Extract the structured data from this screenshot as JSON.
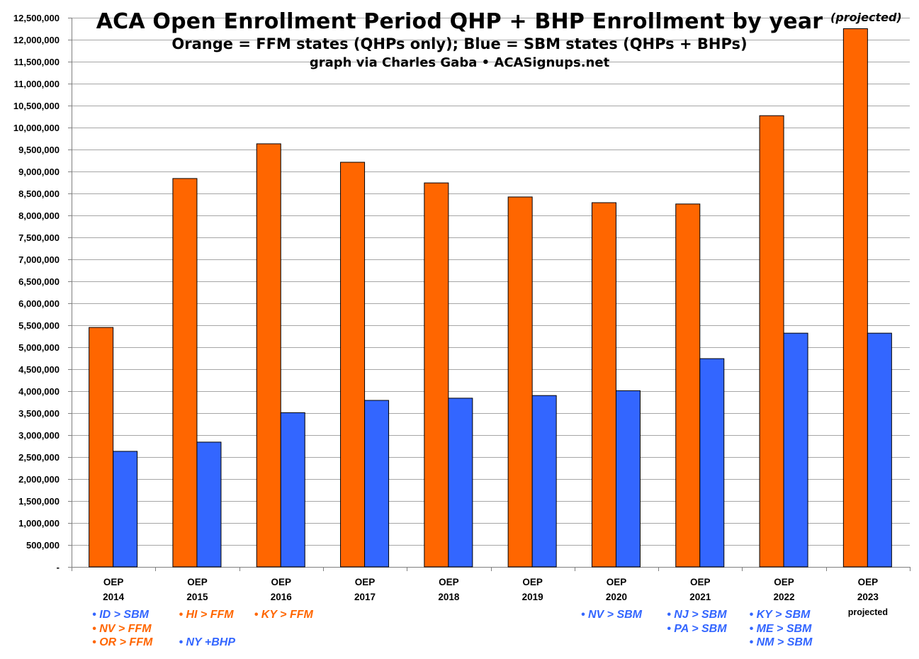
{
  "title": "ACA Open Enrollment Period QHP + BHP Enrollment by year",
  "subtitle": "Orange = FFM states (QHPs only); Blue = SBM states (QHPs + BHPs)",
  "credit": "graph via Charles Gaba • ACASignups.net",
  "projected_note": "(projected)",
  "colors": {
    "ffm": "#FF6600",
    "sbm": "#3366FF",
    "grid": "#A6A6A6"
  },
  "chart_data": {
    "type": "bar",
    "title": "ACA Open Enrollment Period QHP + BHP Enrollment by year",
    "xlabel": "",
    "ylabel": "",
    "ylim": [
      0,
      12500000
    ],
    "ytick_step": 500000,
    "yticks": [
      "-",
      "500,000",
      "1,000,000",
      "1,500,000",
      "2,000,000",
      "2,500,000",
      "3,000,000",
      "3,500,000",
      "4,000,000",
      "4,500,000",
      "5,000,000",
      "5,500,000",
      "6,000,000",
      "6,500,000",
      "7,000,000",
      "7,500,000",
      "8,000,000",
      "8,500,000",
      "9,000,000",
      "9,500,000",
      "10,000,000",
      "10,500,000",
      "11,000,000",
      "11,500,000",
      "12,000,000",
      "12,500,000"
    ],
    "grid": true,
    "categories": [
      [
        "OEP",
        "2014"
      ],
      [
        "OEP",
        "2015"
      ],
      [
        "OEP",
        "2016"
      ],
      [
        "OEP",
        "2017"
      ],
      [
        "OEP",
        "2018"
      ],
      [
        "OEP",
        "2019"
      ],
      [
        "OEP",
        "2020"
      ],
      [
        "OEP",
        "2021"
      ],
      [
        "OEP",
        "2022"
      ],
      [
        "OEP",
        "2023",
        "projected"
      ]
    ],
    "series": [
      {
        "color": "#FF6600",
        "values": [
          5450000,
          8840000,
          9630000,
          9210000,
          8740000,
          8420000,
          8290000,
          8260000,
          10270000,
          12250000
        ]
      },
      {
        "color": "#3366FF",
        "values": [
          2630000,
          2840000,
          3510000,
          3790000,
          3840000,
          3900000,
          4010000,
          4740000,
          5320000,
          5320000
        ]
      }
    ],
    "annotations": [
      {
        "category": "OEP 2014",
        "lines": [
          {
            "text": "• ID > SBM",
            "color": "#3366FF"
          },
          {
            "text": "• NV > FFM",
            "color": "#FF6600"
          },
          {
            "text": "• OR > FFM",
            "color": "#FF6600"
          }
        ]
      },
      {
        "category": "OEP 2015",
        "lines": [
          {
            "text": "• HI > FFM",
            "color": "#FF6600"
          },
          {
            "text": "",
            "color": "#3366FF"
          },
          {
            "text": "• NY +BHP",
            "color": "#3366FF"
          }
        ]
      },
      {
        "category": "OEP 2016",
        "lines": [
          {
            "text": "• KY > FFM",
            "color": "#FF6600"
          }
        ]
      },
      {
        "category": "OEP 2020",
        "lines": [
          {
            "text": "• NV > SBM",
            "color": "#3366FF"
          }
        ]
      },
      {
        "category": "OEP 2021",
        "lines": [
          {
            "text": "• NJ > SBM",
            "color": "#3366FF"
          },
          {
            "text": "• PA > SBM",
            "color": "#3366FF"
          }
        ]
      },
      {
        "category": "OEP 2022",
        "lines": [
          {
            "text": "• KY > SBM",
            "color": "#3366FF"
          },
          {
            "text": "• ME > SBM",
            "color": "#3366FF"
          },
          {
            "text": "• NM > SBM",
            "color": "#3366FF"
          }
        ]
      }
    ]
  }
}
